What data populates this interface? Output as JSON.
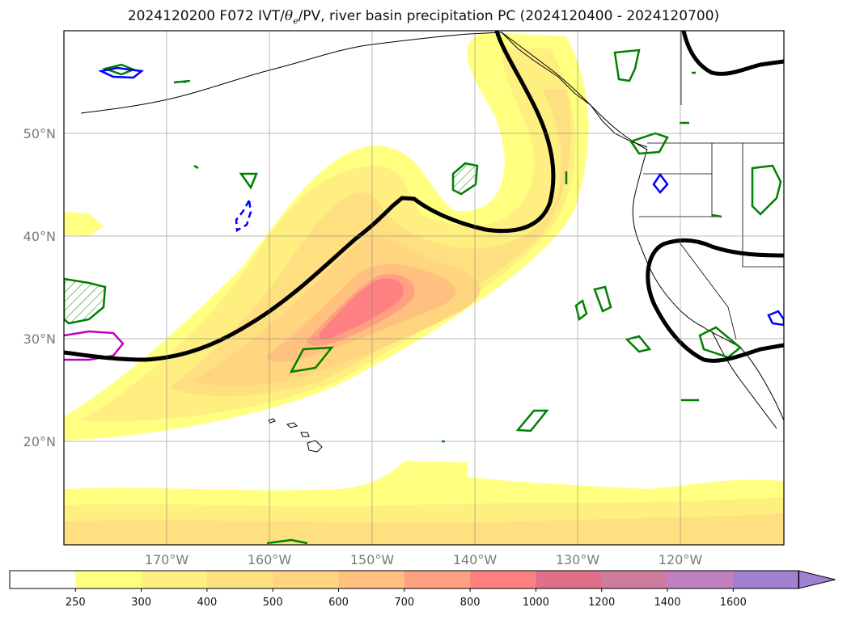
{
  "title": {
    "prefix": "2024120200 F072 IVT/",
    "theta": "θ",
    "theta_sub": "e",
    "suffix": "/PV, river basin precipitation PC (2024120400 - 2024120700)"
  },
  "map": {
    "projection": "PlateCarree",
    "lon_range": [
      -180,
      -110
    ],
    "lat_range": [
      10,
      60
    ],
    "grid": true,
    "lat_ticks": [
      "50°N",
      "40°N",
      "30°N",
      "20°N"
    ],
    "lon_ticks": [
      "170°W",
      "160°W",
      "150°W",
      "140°W",
      "130°W",
      "120°W"
    ],
    "contour_colors": {
      "ivt_fill_low": "#ffff80",
      "ivt_fill_mid": "#ffd580",
      "ivt_fill_high": "#ff8080",
      "theta_e_line": "#000000",
      "pv_green": "#008000",
      "pv_blue": "#0000ff",
      "pv_magenta": "#c000c0"
    }
  },
  "colorbar": {
    "levels": [
      "250",
      "300",
      "400",
      "500",
      "600",
      "700",
      "800",
      "1000",
      "1200",
      "1400",
      "1600"
    ],
    "colors": [
      "#ffffff",
      "#ffff80",
      "#ffee80",
      "#ffe080",
      "#ffd580",
      "#ffc080",
      "#ffa080",
      "#ff8080",
      "#e0708a",
      "#d07aa0",
      "#c080c0",
      "#a080d0"
    ],
    "extend": "max"
  }
}
